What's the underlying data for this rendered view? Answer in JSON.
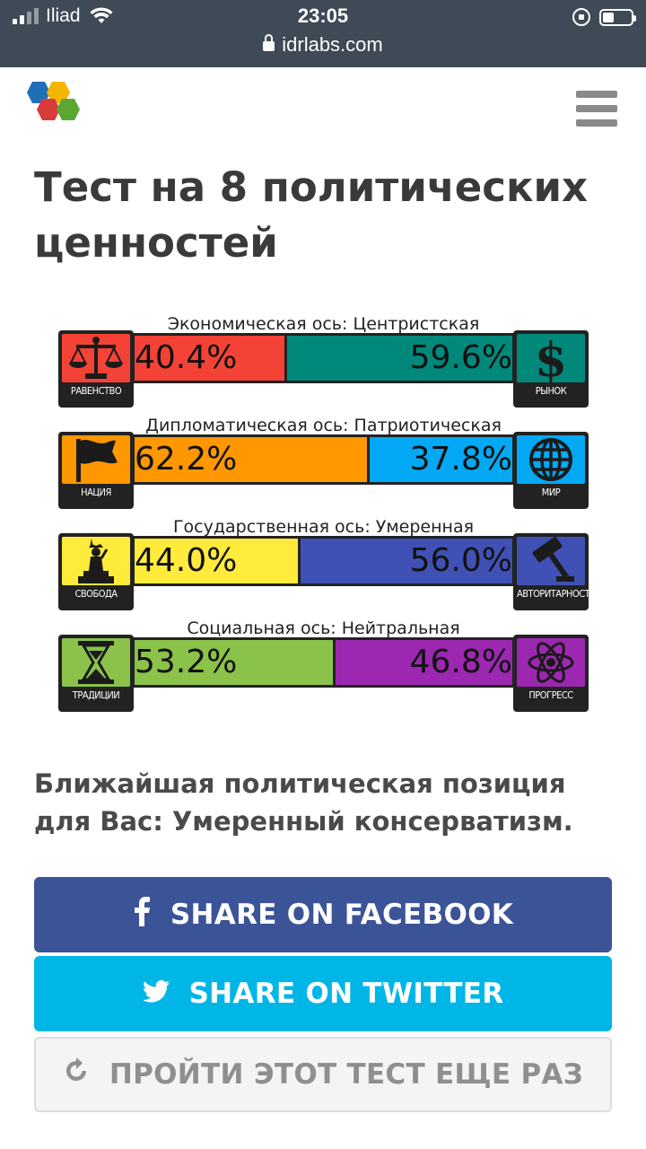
{
  "status": {
    "carrier": "Iliad",
    "time": "23:05",
    "url": "idrlabs.com"
  },
  "page": {
    "title": "Тест на 8 политических ценностей"
  },
  "axes": [
    {
      "label": "Экономическая ось: Центристская",
      "left": {
        "pct": 40.4,
        "text": "40.4%",
        "color": "#f44336",
        "caption": "РАВЕНСТВО",
        "icon": "scales-icon"
      },
      "right": {
        "pct": 59.6,
        "text": "59.6%",
        "color": "#00897b",
        "caption": "РЫНОК",
        "icon": "dollar-icon"
      }
    },
    {
      "label": "Дипломатическая ось: Патриотическая",
      "left": {
        "pct": 62.2,
        "text": "62.2%",
        "color": "#ff9800",
        "caption": "НАЦИЯ",
        "icon": "flag-icon"
      },
      "right": {
        "pct": 37.8,
        "text": "37.8%",
        "color": "#03a9f4",
        "caption": "МИР",
        "icon": "globe-icon"
      }
    },
    {
      "label": "Государственная ось: Умеренная",
      "left": {
        "pct": 44.0,
        "text": "44.0%",
        "color": "#ffeb3b",
        "caption": "СВОБОДА",
        "icon": "liberty-icon"
      },
      "right": {
        "pct": 56.0,
        "text": "56.0%",
        "color": "#3f51b5",
        "caption": "АВТОРИТАРНОСТЬ",
        "icon": "gavel-icon"
      }
    },
    {
      "label": "Социальная ось: Нейтральная",
      "left": {
        "pct": 53.2,
        "text": "53.2%",
        "color": "#8bc34a",
        "caption": "ТРАДИЦИИ",
        "icon": "hourglass-icon"
      },
      "right": {
        "pct": 46.8,
        "text": "46.8%",
        "color": "#9c27b0",
        "caption": "ПРОГРЕСС",
        "icon": "atom-icon"
      }
    }
  ],
  "result": {
    "text": "Ближайшая политическая позиция для Вас: Умеренный консерватизм."
  },
  "buttons": {
    "facebook": "SHARE ON FACEBOOK",
    "twitter": "SHARE ON TWITTER",
    "retake": "ПРОЙТИ ЭТОТ ТЕСТ ЕЩЕ РАЗ"
  },
  "colors": {
    "statusbar": "#3e4a55",
    "facebook": "#3b5397",
    "twitter": "#00b6e6"
  }
}
